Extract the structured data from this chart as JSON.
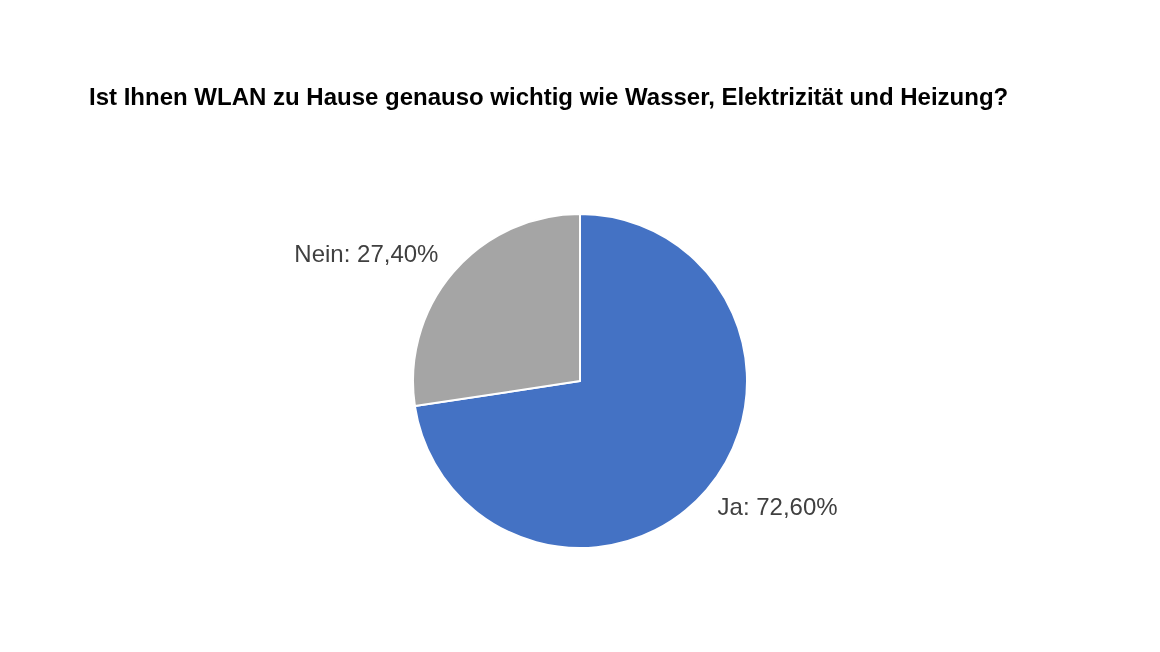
{
  "chart_data": {
    "type": "pie",
    "title": "Ist Ihnen WLAN zu Hause genauso wichtig wie Wasser, Elektrizität und Heizung?",
    "categories": [
      "Ja",
      "Nein"
    ],
    "values": [
      72.6,
      27.4
    ],
    "colors": [
      "#4472c4",
      "#a5a5a5"
    ],
    "value_labels": [
      "72,60%",
      "27,40%"
    ]
  }
}
